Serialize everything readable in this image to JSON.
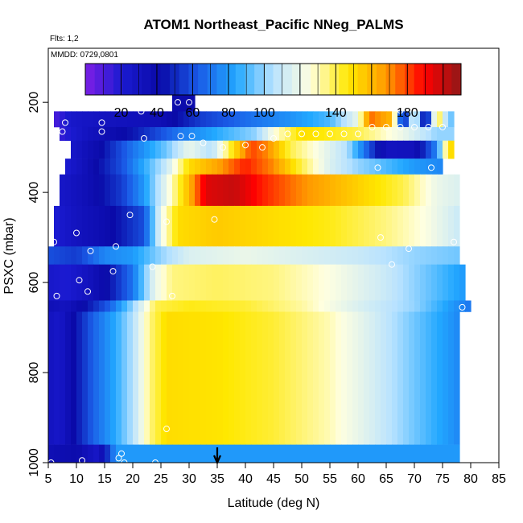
{
  "header": {
    "title": "ATOM1 Northeast_Pacific NNeg_PALMS",
    "flights": "Flts: 1,2",
    "mmdd": "MMDD: 0729,0801"
  },
  "chart_data": {
    "type": "heatmap",
    "title": "ATOM1 Northeast_Pacific NNeg_PALMS",
    "xlabel": "Latitude (deg N)",
    "ylabel": "PSXC (mbar)",
    "xlim": [
      5,
      85
    ],
    "ylim": [
      1000,
      80
    ],
    "y_reversed": true,
    "x_ticks": [
      5,
      10,
      15,
      20,
      25,
      30,
      35,
      40,
      45,
      50,
      55,
      60,
      65,
      70,
      75,
      80,
      85
    ],
    "y_ticks": [
      200,
      400,
      600,
      800,
      1000
    ],
    "colorbar": {
      "min": 0,
      "max": 210,
      "tick_values": [
        20,
        40,
        60,
        80,
        100,
        140,
        180
      ],
      "colors": [
        "#7d1ee6",
        "#1a1ad0",
        "#0a0aa8",
        "#1a5ae6",
        "#22a8ff",
        "#b8e2ff",
        "#ffffe0",
        "#ffe800",
        "#ff9a00",
        "#ff0000",
        "#901818"
      ]
    },
    "marker": {
      "x": 35,
      "label": "arrow"
    },
    "rows": [
      {
        "p_top": 170,
        "p_bot": 220,
        "x0": 27,
        "x1": 31,
        "profile": [
          [
            27,
            40
          ],
          [
            31,
            40
          ]
        ]
      },
      {
        "p_top": 220,
        "p_bot": 255,
        "x0": 6,
        "x1": 77,
        "profile": [
          [
            6,
            10
          ],
          [
            9,
            25
          ],
          [
            15,
            30
          ],
          [
            25,
            35
          ],
          [
            32,
            55
          ],
          [
            40,
            68
          ],
          [
            48,
            78
          ],
          [
            55,
            90
          ],
          [
            60,
            120
          ],
          [
            62,
            175
          ],
          [
            66,
            160
          ],
          [
            68,
            35
          ],
          [
            70,
            130
          ],
          [
            72,
            25
          ],
          [
            74,
            150
          ],
          [
            76,
            95
          ],
          [
            77,
            95
          ]
        ]
      },
      {
        "p_top": 255,
        "p_bot": 285,
        "x0": 7,
        "x1": 77,
        "profile": [
          [
            7,
            15
          ],
          [
            12,
            30
          ],
          [
            20,
            45
          ],
          [
            28,
            70
          ],
          [
            35,
            85
          ],
          [
            42,
            100
          ],
          [
            45,
            125
          ],
          [
            50,
            150
          ],
          [
            60,
            140
          ],
          [
            68,
            120
          ],
          [
            74,
            100
          ],
          [
            77,
            100
          ]
        ]
      },
      {
        "p_top": 285,
        "p_bot": 325,
        "x0": 9,
        "x1": 77,
        "profile": [
          [
            9,
            25
          ],
          [
            14,
            40
          ],
          [
            20,
            70
          ],
          [
            26,
            95
          ],
          [
            30,
            120
          ],
          [
            34,
            105
          ],
          [
            38,
            150
          ],
          [
            41,
            180
          ],
          [
            44,
            170
          ],
          [
            48,
            140
          ],
          [
            54,
            120
          ],
          [
            58,
            105
          ],
          [
            62,
            60
          ],
          [
            65,
            30
          ],
          [
            70,
            32
          ],
          [
            74,
            75
          ],
          [
            76,
            150
          ],
          [
            77,
            150
          ]
        ]
      },
      {
        "p_top": 325,
        "p_bot": 360,
        "x0": 8,
        "x1": 75,
        "profile": [
          [
            8,
            20
          ],
          [
            12,
            35
          ],
          [
            18,
            60
          ],
          [
            22,
            85
          ],
          [
            26,
            110
          ],
          [
            30,
            150
          ],
          [
            35,
            165
          ],
          [
            40,
            185
          ],
          [
            45,
            170
          ],
          [
            50,
            140
          ],
          [
            55,
            115
          ],
          [
            60,
            100
          ],
          [
            65,
            90
          ],
          [
            70,
            80
          ],
          [
            75,
            75
          ]
        ]
      },
      {
        "p_top": 360,
        "p_bot": 430,
        "x0": 7,
        "x1": 78,
        "profile": [
          [
            7,
            25
          ],
          [
            12,
            35
          ],
          [
            18,
            55
          ],
          [
            22,
            80
          ],
          [
            26,
            120
          ],
          [
            30,
            160
          ],
          [
            33,
            195
          ],
          [
            38,
            200
          ],
          [
            43,
            185
          ],
          [
            50,
            170
          ],
          [
            56,
            160
          ],
          [
            62,
            150
          ],
          [
            68,
            140
          ],
          [
            74,
            120
          ],
          [
            78,
            115
          ]
        ]
      },
      {
        "p_top": 430,
        "p_bot": 520,
        "x0": 6,
        "x1": 78,
        "profile": [
          [
            6,
            20
          ],
          [
            10,
            30
          ],
          [
            16,
            40
          ],
          [
            22,
            60
          ],
          [
            25,
            120
          ],
          [
            28,
            150
          ],
          [
            35,
            155
          ],
          [
            45,
            150
          ],
          [
            55,
            145
          ],
          [
            65,
            135
          ],
          [
            72,
            125
          ],
          [
            78,
            110
          ]
        ]
      },
      {
        "p_top": 520,
        "p_bot": 560,
        "x0": 5,
        "x1": 78,
        "profile": [
          [
            5,
            60
          ],
          [
            10,
            55
          ],
          [
            15,
            75
          ],
          [
            20,
            80
          ],
          [
            25,
            100
          ],
          [
            30,
            115
          ],
          [
            40,
            120
          ],
          [
            50,
            115
          ],
          [
            60,
            110
          ],
          [
            70,
            100
          ],
          [
            78,
            95
          ]
        ]
      },
      {
        "p_top": 560,
        "p_bot": 640,
        "x0": 5,
        "x1": 79,
        "profile": [
          [
            5,
            25
          ],
          [
            8,
            20
          ],
          [
            12,
            30
          ],
          [
            16,
            45
          ],
          [
            20,
            70
          ],
          [
            24,
            120
          ],
          [
            27,
            135
          ],
          [
            35,
            138
          ],
          [
            45,
            135
          ],
          [
            55,
            125
          ],
          [
            65,
            110
          ],
          [
            72,
            95
          ],
          [
            79,
            80
          ]
        ]
      },
      {
        "p_top": 640,
        "p_bot": 665,
        "x0": 5,
        "x1": 80,
        "profile": [
          [
            5,
            35
          ],
          [
            8,
            30
          ],
          [
            12,
            45
          ],
          [
            16,
            65
          ],
          [
            20,
            100
          ],
          [
            24,
            140
          ],
          [
            30,
            145
          ],
          [
            40,
            142
          ],
          [
            50,
            132
          ],
          [
            60,
            115
          ],
          [
            70,
            100
          ],
          [
            80,
            70
          ]
        ]
      },
      {
        "p_top": 665,
        "p_bot": 960,
        "x0": 5,
        "x1": 78,
        "profile": [
          [
            5,
            30
          ],
          [
            7,
            25
          ],
          [
            10,
            45
          ],
          [
            13,
            65
          ],
          [
            17,
            85
          ],
          [
            20,
            105
          ],
          [
            23,
            135
          ],
          [
            26,
            150
          ],
          [
            35,
            148
          ],
          [
            45,
            142
          ],
          [
            55,
            130
          ],
          [
            62,
            115
          ],
          [
            68,
            100
          ],
          [
            74,
            85
          ],
          [
            78,
            75
          ]
        ]
      },
      {
        "p_top": 960,
        "p_bot": 1000,
        "x0": 5,
        "x1": 78,
        "profile": [
          [
            5,
            35
          ],
          [
            10,
            40
          ],
          [
            14,
            25
          ],
          [
            17,
            80
          ],
          [
            78,
            80
          ]
        ]
      }
    ],
    "points": [
      [
        5.5,
        1000
      ],
      [
        6.5,
        630
      ],
      [
        6,
        510
      ],
      [
        7.5,
        265
      ],
      [
        8,
        245
      ],
      [
        10,
        490
      ],
      [
        10.5,
        595
      ],
      [
        11,
        995
      ],
      [
        12,
        620
      ],
      [
        12.5,
        530
      ],
      [
        14.5,
        245
      ],
      [
        14.5,
        265
      ],
      [
        16.5,
        575
      ],
      [
        17,
        520
      ],
      [
        17.5,
        990
      ],
      [
        18,
        980
      ],
      [
        18.5,
        1000
      ],
      [
        19.5,
        450
      ],
      [
        21.5,
        220
      ],
      [
        22,
        280
      ],
      [
        23.5,
        565
      ],
      [
        24,
        1000
      ],
      [
        26,
        465
      ],
      [
        26,
        925
      ],
      [
        27,
        630
      ],
      [
        28,
        200
      ],
      [
        28.5,
        275
      ],
      [
        30.5,
        275
      ],
      [
        30,
        200
      ],
      [
        32.5,
        290
      ],
      [
        34.5,
        460
      ],
      [
        36,
        300
      ],
      [
        40,
        295
      ],
      [
        43,
        300
      ],
      [
        45,
        280
      ],
      [
        47.5,
        270
      ],
      [
        50,
        270
      ],
      [
        52.5,
        270
      ],
      [
        55,
        270
      ],
      [
        57.5,
        270
      ],
      [
        60,
        270
      ],
      [
        62.5,
        255
      ],
      [
        65,
        255
      ],
      [
        67.5,
        255
      ],
      [
        70,
        255
      ],
      [
        72.5,
        255
      ],
      [
        63.5,
        345
      ],
      [
        64,
        500
      ],
      [
        66,
        560
      ],
      [
        67.5,
        218
      ],
      [
        69,
        525
      ],
      [
        73,
        345
      ],
      [
        75,
        255
      ],
      [
        77,
        510
      ],
      [
        78.5,
        655
      ],
      [
        79,
        965
      ]
    ]
  }
}
